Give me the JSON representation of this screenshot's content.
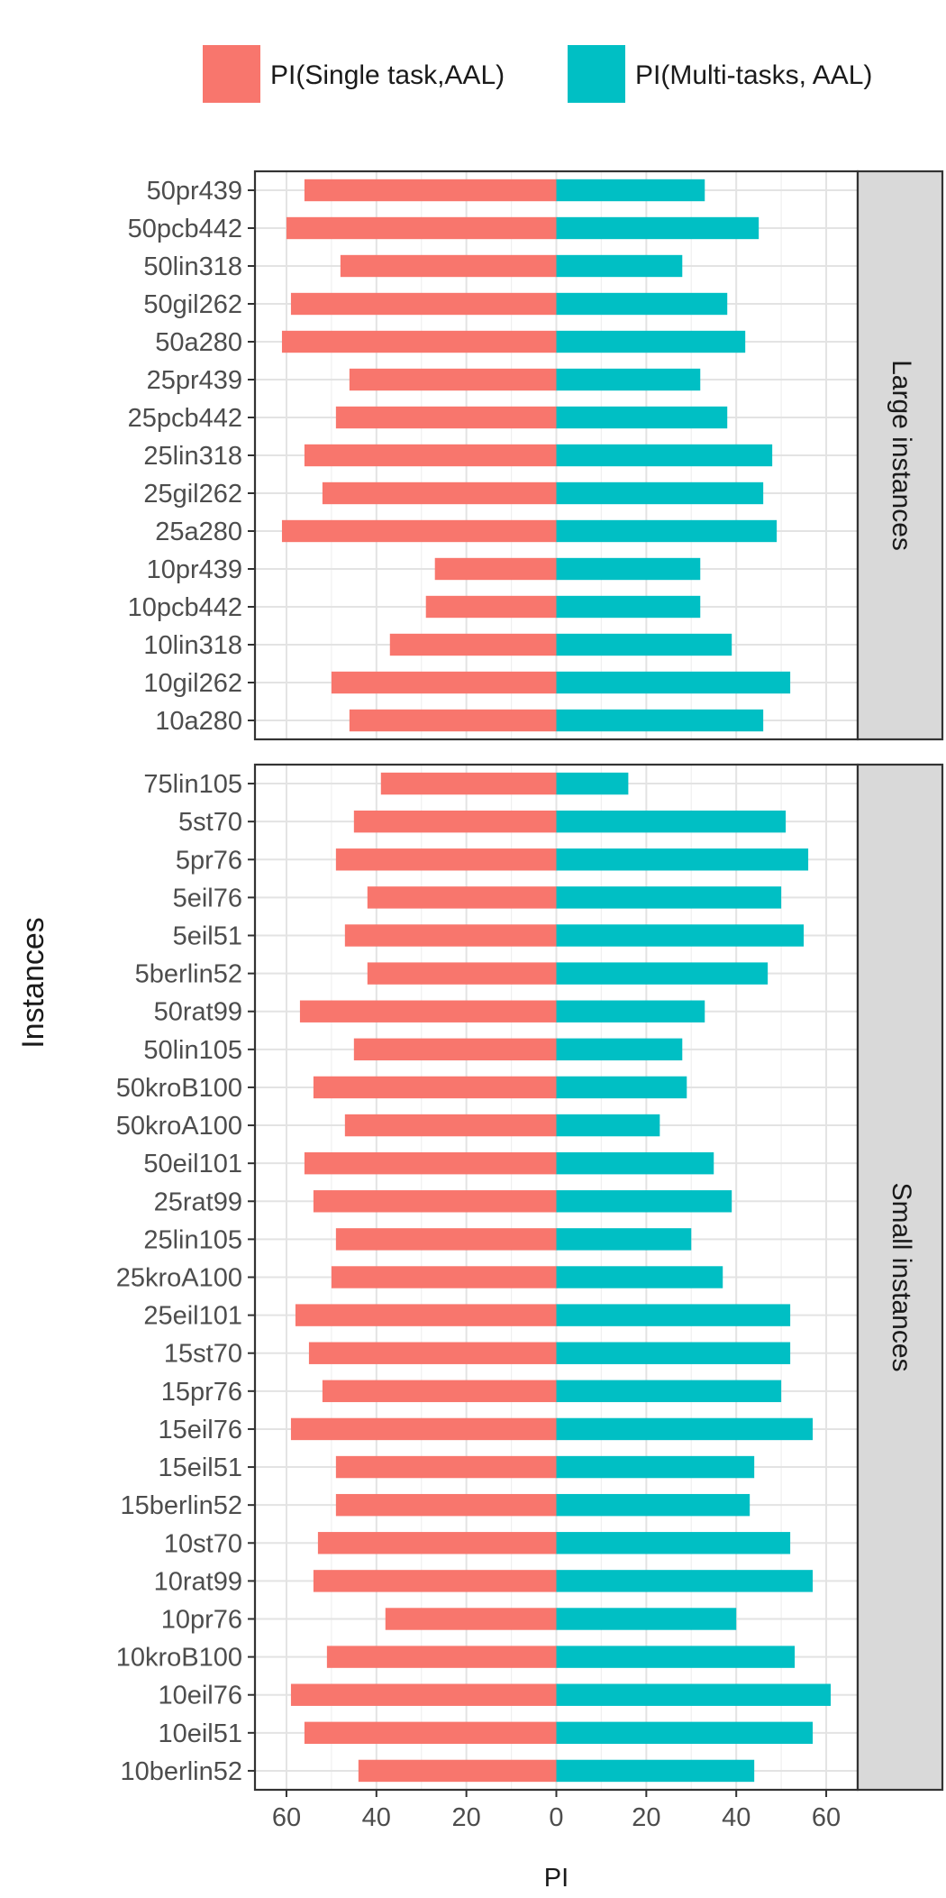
{
  "chart_data": {
    "type": "bar",
    "orientation": "horizontal-diverging",
    "xlabel": "PI",
    "ylabel": "Instances",
    "xlim": [
      -67,
      67
    ],
    "x_ticks": [
      -60,
      -40,
      -20,
      0,
      20,
      40,
      60
    ],
    "x_tick_labels": [
      "60",
      "40",
      "20",
      "0",
      "20",
      "40",
      "60"
    ],
    "grid": true,
    "legend_position": "top",
    "legend": [
      {
        "name": "PI(Single task,AAL)",
        "color": "#F8766D"
      },
      {
        "name": "PI(Multi-tasks, AAL)",
        "color": "#00BFC4"
      }
    ],
    "panels": [
      {
        "label": "Large instances",
        "categories": [
          "50pr439",
          "50pcb442",
          "50lin318",
          "50gil262",
          "50a280",
          "25pr439",
          "25pcb442",
          "25lin318",
          "25gil262",
          "25a280",
          "10pr439",
          "10pcb442",
          "10lin318",
          "10gil262",
          "10a280"
        ],
        "series": [
          {
            "name": "PI(Single task,AAL)",
            "values": [
              56,
              60,
              48,
              59,
              61,
              46,
              49,
              56,
              52,
              61,
              27,
              29,
              37,
              50,
              46
            ]
          },
          {
            "name": "PI(Multi-tasks, AAL)",
            "values": [
              33,
              45,
              28,
              38,
              42,
              32,
              38,
              48,
              46,
              49,
              32,
              32,
              39,
              52,
              46
            ]
          }
        ]
      },
      {
        "label": "Small instances",
        "categories": [
          "75lin105",
          "5st70",
          "5pr76",
          "5eil76",
          "5eil51",
          "5berlin52",
          "50rat99",
          "50lin105",
          "50kroB100",
          "50kroA100",
          "50eil101",
          "25rat99",
          "25lin105",
          "25kroA100",
          "25eil101",
          "15st70",
          "15pr76",
          "15eil76",
          "15eil51",
          "15berlin52",
          "10st70",
          "10rat99",
          "10pr76",
          "10kroB100",
          "10eil76",
          "10eil51",
          "10berlin52"
        ],
        "series": [
          {
            "name": "PI(Single task,AAL)",
            "values": [
              39,
              45,
              49,
              42,
              47,
              42,
              57,
              45,
              54,
              47,
              56,
              54,
              49,
              50,
              58,
              55,
              52,
              59,
              49,
              49,
              53,
              54,
              38,
              51,
              59,
              56,
              44
            ]
          },
          {
            "name": "PI(Multi-tasks, AAL)",
            "values": [
              16,
              51,
              56,
              50,
              55,
              47,
              33,
              28,
              29,
              23,
              35,
              39,
              30,
              37,
              52,
              52,
              50,
              57,
              44,
              43,
              52,
              57,
              40,
              53,
              61,
              57,
              44
            ]
          }
        ]
      }
    ]
  }
}
